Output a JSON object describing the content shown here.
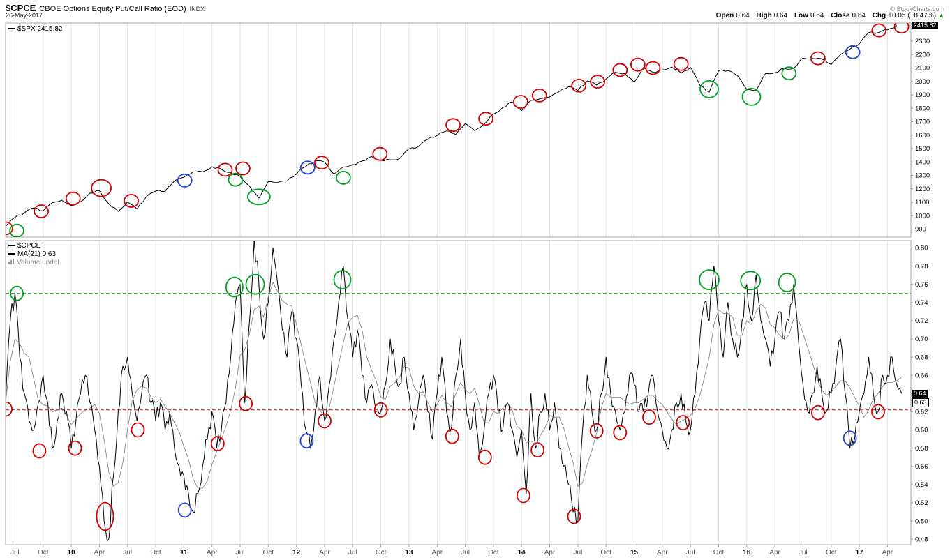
{
  "header": {
    "symbol": "$CPCE",
    "title": "CBOE Options Equity Put/Call Ratio (EOD)",
    "exchange": "INDX",
    "date": "26-May-2017",
    "source": "© StockCharts.com",
    "quote": {
      "open_label": "Open",
      "open": "0.64",
      "high_label": "High",
      "high": "0.64",
      "low_label": "Low",
      "low": "0.64",
      "close_label": "Close",
      "close": "0.64",
      "chg_label": "Chg",
      "chg": "+0.05 (+8.47%)",
      "direction": "▲"
    }
  },
  "panels": {
    "spx": {
      "legend": "$SPX 2415.82",
      "last_value": "2415.82"
    },
    "cpce": {
      "legend_symbol": "$CPCE",
      "legend_ma": "MA(21) 0.63",
      "legend_volume": "Volume undef",
      "last_value": "0.64",
      "ma_value": "0.63"
    }
  },
  "colors": {
    "series": "#000000",
    "red": "#d40000",
    "green": "#00a020",
    "blue": "#2244cc",
    "green_dashed": "#009900",
    "red_dashed": "#ee0000"
  },
  "chart_data": [
    {
      "type": "line",
      "title": "$SPX",
      "x_start": "Jun-2009",
      "x_end": "May-2017",
      "x_unit": "months from Jun-2009",
      "ylim": [
        840,
        2435
      ],
      "yticks": [
        2300,
        2200,
        2100,
        2000,
        1900,
        1800,
        1700,
        1600,
        1500,
        1400,
        1300,
        1200,
        1100,
        1000,
        900
      ],
      "series": [
        {
          "name": "$SPX",
          "color": "#000000",
          "samples_per_month": 1,
          "values": [
            919,
            987,
            1021,
            1057,
            1036,
            1096,
            1115,
            1074,
            1104,
            1169,
            1187,
            1089,
            1031,
            1102,
            1049,
            1141,
            1183,
            1181,
            1258,
            1286,
            1327,
            1326,
            1364,
            1345,
            1321,
            1292,
            1219,
            1131,
            1253,
            1247,
            1258,
            1312,
            1366,
            1408,
            1398,
            1310,
            1362,
            1379,
            1407,
            1441,
            1412,
            1416,
            1426,
            1498,
            1515,
            1569,
            1598,
            1631,
            1606,
            1686,
            1633,
            1682,
            1757,
            1806,
            1848,
            1783,
            1859,
            1872,
            1884,
            1924,
            1960,
            1931,
            2003,
            1972,
            2018,
            2068,
            2059,
            1995,
            2105,
            2068,
            2086,
            2107,
            2063,
            2104,
            1972,
            1920,
            2079,
            2080,
            2044,
            1940,
            1932,
            2060,
            2065,
            2097,
            2099,
            2174,
            2171,
            2168,
            2126,
            2199,
            2239,
            2279,
            2364,
            2363,
            2384,
            2415.82
          ]
        }
      ],
      "annotations": [
        [
          0.0,
          905,
          "red"
        ],
        [
          1.2,
          888,
          "green"
        ],
        [
          3.8,
          1032,
          "red"
        ],
        [
          7.2,
          1128,
          "red"
        ],
        [
          10.2,
          1205,
          "red",
          14,
          12
        ],
        [
          13.4,
          1110,
          "red"
        ],
        [
          19.1,
          1262,
          "blue"
        ],
        [
          23.4,
          1342,
          "red"
        ],
        [
          24.5,
          1268,
          "green"
        ],
        [
          25.3,
          1352,
          "red"
        ],
        [
          27.0,
          1140,
          "green",
          16,
          11
        ],
        [
          32.2,
          1358,
          "blue"
        ],
        [
          33.7,
          1395,
          "red"
        ],
        [
          36.0,
          1282,
          "green"
        ],
        [
          39.9,
          1460,
          "red"
        ],
        [
          47.7,
          1675,
          "red"
        ],
        [
          51.2,
          1722,
          "red"
        ],
        [
          54.9,
          1848,
          "red"
        ],
        [
          56.9,
          1895,
          "red"
        ],
        [
          61.1,
          1968,
          "red"
        ],
        [
          63.1,
          1998,
          "red"
        ],
        [
          65.5,
          2085,
          "red"
        ],
        [
          67.4,
          2125,
          "red"
        ],
        [
          69.0,
          2100,
          "red"
        ],
        [
          72.0,
          2130,
          "red"
        ],
        [
          75.0,
          1942,
          "green",
          13,
          12
        ],
        [
          79.5,
          1885,
          "green",
          13,
          12
        ],
        [
          83.5,
          2060,
          "green"
        ],
        [
          86.6,
          2172,
          "red"
        ],
        [
          90.3,
          2218,
          "blue"
        ],
        [
          93.1,
          2380,
          "red"
        ],
        [
          95.5,
          2408,
          "red"
        ]
      ]
    },
    {
      "type": "line",
      "title": "$CPCE",
      "x_start": "Jun-2009",
      "x_end": "May-2017",
      "x_unit": "months from Jun-2009",
      "ylim": [
        0.474,
        0.808
      ],
      "yticks": [
        0.8,
        0.78,
        0.76,
        0.74,
        0.72,
        0.7,
        0.68,
        0.66,
        0.64,
        0.62,
        0.6,
        0.58,
        0.56,
        0.54,
        0.52,
        0.5,
        0.48
      ],
      "hlines": [
        {
          "value": 0.75,
          "color": "#009900",
          "style": "dashed"
        },
        {
          "value": 0.622,
          "color": "#ee0000",
          "style": "dashed"
        }
      ],
      "series": [
        {
          "name": "$CPCE",
          "color": "#000000",
          "samples_per_month": 2,
          "values": [
            0.63,
            0.72,
            0.75,
            0.68,
            0.64,
            0.61,
            0.6,
            0.63,
            0.66,
            0.63,
            0.58,
            0.61,
            0.64,
            0.62,
            0.58,
            0.61,
            0.64,
            0.66,
            0.63,
            0.6,
            0.56,
            0.5,
            0.48,
            0.55,
            0.62,
            0.67,
            0.68,
            0.64,
            0.61,
            0.64,
            0.66,
            0.63,
            0.61,
            0.63,
            0.6,
            0.62,
            0.58,
            0.56,
            0.55,
            0.53,
            0.51,
            0.53,
            0.56,
            0.59,
            0.62,
            0.58,
            0.6,
            0.63,
            0.68,
            0.74,
            0.76,
            0.63,
            0.72,
            0.81,
            0.76,
            0.7,
            0.74,
            0.8,
            0.76,
            0.71,
            0.68,
            0.73,
            0.7,
            0.65,
            0.6,
            0.58,
            0.62,
            0.66,
            0.61,
            0.65,
            0.7,
            0.74,
            0.78,
            0.72,
            0.68,
            0.71,
            0.66,
            0.63,
            0.65,
            0.62,
            0.62,
            0.65,
            0.7,
            0.67,
            0.65,
            0.68,
            0.64,
            0.6,
            0.63,
            0.66,
            0.62,
            0.59,
            0.64,
            0.68,
            0.62,
            0.6,
            0.66,
            0.7,
            0.64,
            0.6,
            0.63,
            0.57,
            0.6,
            0.64,
            0.66,
            0.62,
            0.6,
            0.63,
            0.6,
            0.57,
            0.6,
            0.53,
            0.64,
            0.58,
            0.62,
            0.64,
            0.6,
            0.63,
            0.58,
            0.56,
            0.54,
            0.51,
            0.5,
            0.6,
            0.66,
            0.62,
            0.6,
            0.64,
            0.68,
            0.64,
            0.62,
            0.6,
            0.62,
            0.66,
            0.65,
            0.62,
            0.62,
            0.64,
            0.66,
            0.62,
            0.6,
            0.58,
            0.6,
            0.63,
            0.64,
            0.61,
            0.6,
            0.64,
            0.7,
            0.74,
            0.72,
            0.78,
            0.72,
            0.68,
            0.74,
            0.7,
            0.68,
            0.72,
            0.76,
            0.72,
            0.77,
            0.72,
            0.7,
            0.67,
            0.7,
            0.73,
            0.7,
            0.72,
            0.76,
            0.7,
            0.65,
            0.62,
            0.64,
            0.67,
            0.64,
            0.62,
            0.64,
            0.67,
            0.7,
            0.64,
            0.58,
            0.59,
            0.62,
            0.64,
            0.68,
            0.64,
            0.62,
            0.66,
            0.66,
            0.68,
            0.65,
            0.64
          ]
        },
        {
          "name": "MA(21)",
          "color": "#555555",
          "derived": "moving-average of $CPCE samples, window 5",
          "last": 0.63
        }
      ],
      "annotations": [
        [
          0.0,
          0.623,
          "red"
        ],
        [
          1.2,
          0.75,
          "green"
        ],
        [
          3.6,
          0.577,
          "red"
        ],
        [
          7.4,
          0.58,
          "red"
        ],
        [
          10.6,
          0.505,
          "red",
          12,
          20
        ],
        [
          14.1,
          0.6,
          "red"
        ],
        [
          19.1,
          0.512,
          "blue"
        ],
        [
          22.6,
          0.585,
          "red"
        ],
        [
          24.4,
          0.757,
          "green",
          12,
          14
        ],
        [
          25.6,
          0.629,
          "red"
        ],
        [
          26.6,
          0.76,
          "green",
          13,
          14
        ],
        [
          32.1,
          0.588,
          "blue"
        ],
        [
          34.0,
          0.61,
          "red"
        ],
        [
          35.9,
          0.765,
          "green",
          12,
          13
        ],
        [
          40.0,
          0.622,
          "red"
        ],
        [
          47.6,
          0.593,
          "red"
        ],
        [
          51.1,
          0.57,
          "red"
        ],
        [
          55.2,
          0.528,
          "red"
        ],
        [
          56.7,
          0.578,
          "red"
        ],
        [
          60.6,
          0.505,
          "red"
        ],
        [
          63.0,
          0.599,
          "red"
        ],
        [
          65.5,
          0.597,
          "red"
        ],
        [
          68.6,
          0.614,
          "red"
        ],
        [
          72.2,
          0.608,
          "red"
        ],
        [
          75.0,
          0.765,
          "green",
          14,
          14
        ],
        [
          79.4,
          0.764,
          "green",
          14,
          13
        ],
        [
          83.3,
          0.762,
          "green",
          12,
          13
        ],
        [
          86.6,
          0.619,
          "red"
        ],
        [
          90.0,
          0.591,
          "blue"
        ],
        [
          93.0,
          0.62,
          "red"
        ]
      ],
      "x_axis": {
        "labels": [
          [
            "Jul",
            1
          ],
          [
            "Oct",
            4
          ],
          [
            "10",
            7,
            true
          ],
          [
            "Apr",
            10
          ],
          [
            "Jul",
            13
          ],
          [
            "Oct",
            16
          ],
          [
            "11",
            19,
            true
          ],
          [
            "Apr",
            22
          ],
          [
            "Jul",
            25
          ],
          [
            "Oct",
            28
          ],
          [
            "12",
            31,
            true
          ],
          [
            "Apr",
            34
          ],
          [
            "Jul",
            37
          ],
          [
            "Oct",
            40
          ],
          [
            "13",
            43,
            true
          ],
          [
            "Apr",
            46
          ],
          [
            "Jul",
            49
          ],
          [
            "Oct",
            52
          ],
          [
            "14",
            55,
            true
          ],
          [
            "Apr",
            58
          ],
          [
            "Jul",
            61
          ],
          [
            "Oct",
            64
          ],
          [
            "15",
            67,
            true
          ],
          [
            "Apr",
            70
          ],
          [
            "Jul",
            73
          ],
          [
            "Oct",
            76
          ],
          [
            "16",
            79,
            true
          ],
          [
            "Apr",
            82
          ],
          [
            "Jul",
            85
          ],
          [
            "Oct",
            88
          ],
          [
            "17",
            91,
            true
          ],
          [
            "Apr",
            94
          ]
        ]
      }
    }
  ]
}
